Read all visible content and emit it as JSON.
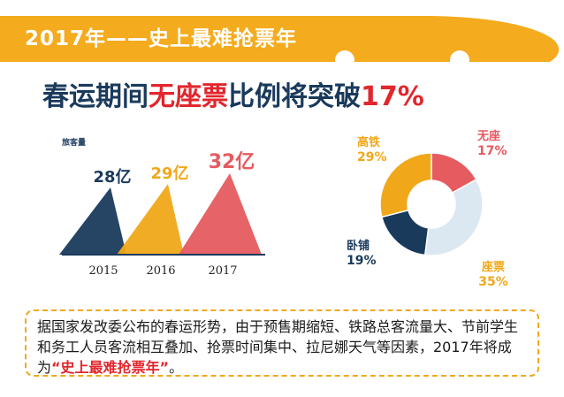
{
  "banner": {
    "title": "2017年——史上最难抢票年",
    "color": "#f4ab1e"
  },
  "headline": {
    "prefix": "春运期间",
    "highlight": "无座票",
    "middle": "比例将突破",
    "percent": "17%"
  },
  "chart_data": [
    {
      "type": "bar",
      "ylabel": "旅客量",
      "categories": [
        "2015",
        "2016",
        "2017"
      ],
      "values": [
        28,
        29,
        32
      ],
      "data_labels": [
        "28亿",
        "29亿",
        "32亿"
      ],
      "colors": [
        "#1a3a5c",
        "#f0a81a",
        "#e55b60"
      ]
    },
    {
      "type": "pie",
      "style": "donut",
      "slices": [
        {
          "name": "无座",
          "value": 17,
          "label": "17%",
          "color": "#e55b60"
        },
        {
          "name": "座票",
          "value": 35,
          "label": "35%",
          "color": "#dbe8f2"
        },
        {
          "name": "卧铺",
          "value": 19,
          "label": "19%",
          "color": "#1a3a5c"
        },
        {
          "name": "高铁",
          "value": 29,
          "label": "29%",
          "color": "#f0a81a"
        }
      ]
    }
  ],
  "note": {
    "text": "据国家发改委公布的春运形势，由于预售期缩短、铁路总客流量大、节前学生和务工人员客流相互叠加、抢票时间集中、拉尼娜天气等因素，2017年将成为",
    "quote": "“史上最难抢票年”",
    "end": "。"
  }
}
